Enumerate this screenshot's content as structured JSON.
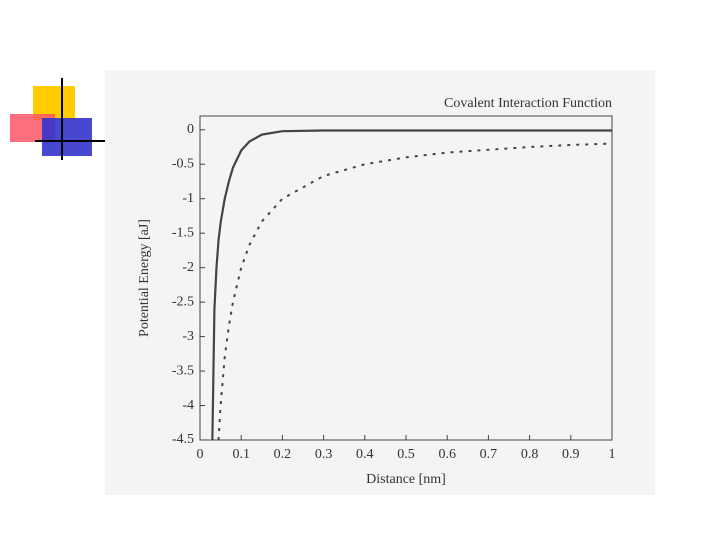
{
  "chart_data": {
    "type": "line",
    "title": "Covalent Interaction Function",
    "x_label": "Distance [nm]",
    "y_label": "Potential Energy [aJ]",
    "x": [
      0.03,
      0.035,
      0.04,
      0.045,
      0.05,
      0.06,
      0.07,
      0.08,
      0.1,
      0.12,
      0.15,
      0.2,
      0.3,
      0.4,
      0.5,
      0.6,
      0.7,
      0.8,
      0.9,
      1.0
    ],
    "series": [
      {
        "color": "#444444",
        "dash": false,
        "values": [
          -4.5,
          -2.6,
          -2.0,
          -1.6,
          -1.35,
          -1.0,
          -0.75,
          -0.55,
          -0.3,
          -0.17,
          -0.07,
          -0.02,
          -0.01,
          -0.01,
          -0.01,
          -0.01,
          -0.01,
          -0.01,
          -0.01,
          -0.01
        ]
      },
      {
        "color": "#444444",
        "dash": true,
        "values": [
          null,
          null,
          null,
          -4.5,
          -4.0,
          -3.3,
          -2.85,
          -2.5,
          -2.0,
          -1.67,
          -1.33,
          -1.0,
          -0.67,
          -0.5,
          -0.4,
          -0.33,
          -0.29,
          -0.25,
          -0.22,
          -0.2
        ]
      }
    ],
    "xlim": [
      0,
      1
    ],
    "xticks": [
      0,
      0.1,
      0.2,
      0.3,
      0.4,
      0.5,
      0.6,
      0.7,
      0.8,
      0.9,
      1
    ],
    "ylim": [
      -4.5,
      0.2
    ],
    "yticks": [
      0,
      -0.5,
      -1,
      -1.5,
      -2,
      -2.5,
      -3,
      -3.5,
      -4,
      -4.5
    ]
  }
}
